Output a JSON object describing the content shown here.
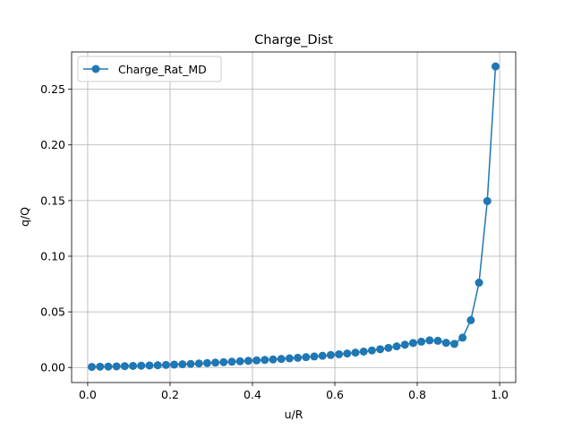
{
  "chart_data": {
    "type": "line",
    "title": "Charge_Dist",
    "xlabel": "u/R",
    "ylabel": "q/Q",
    "xlim": [
      -0.039,
      1.039
    ],
    "ylim": [
      -0.0135,
      0.2835
    ],
    "xticks": [
      0.0,
      0.2,
      0.4,
      0.6,
      0.8,
      1.0
    ],
    "xtick_labels": [
      "0.0",
      "0.2",
      "0.4",
      "0.6",
      "0.8",
      "1.0"
    ],
    "yticks": [
      0.0,
      0.05,
      0.1,
      0.15,
      0.2,
      0.25
    ],
    "ytick_labels": [
      "0.00",
      "0.05",
      "0.10",
      "0.15",
      "0.20",
      "0.25"
    ],
    "grid": true,
    "legend_position": "top-left",
    "series": [
      {
        "name": "Charge_Rat_MD",
        "color": "#1f77b4",
        "marker": "circle",
        "x": [
          0.01,
          0.03,
          0.05,
          0.07,
          0.09,
          0.11,
          0.13,
          0.15,
          0.17,
          0.19,
          0.21,
          0.23,
          0.25,
          0.27,
          0.29,
          0.31,
          0.33,
          0.35,
          0.37,
          0.39,
          0.41,
          0.43,
          0.45,
          0.47,
          0.49,
          0.51,
          0.53,
          0.55,
          0.57,
          0.59,
          0.61,
          0.63,
          0.65,
          0.67,
          0.69,
          0.71,
          0.73,
          0.75,
          0.77,
          0.79,
          0.81,
          0.83,
          0.85,
          0.87,
          0.89,
          0.91,
          0.93,
          0.95,
          0.97,
          0.99
        ],
        "y": [
          0.0005,
          0.0007,
          0.0008,
          0.001,
          0.0012,
          0.0014,
          0.0016,
          0.0018,
          0.002,
          0.0023,
          0.0026,
          0.0029,
          0.0032,
          0.0036,
          0.004,
          0.0044,
          0.0048,
          0.0052,
          0.0056,
          0.006,
          0.0064,
          0.0068,
          0.0072,
          0.0077,
          0.0082,
          0.0087,
          0.0093,
          0.0099,
          0.0105,
          0.0112,
          0.0119,
          0.0126,
          0.0134,
          0.0143,
          0.0153,
          0.0164,
          0.0176,
          0.019,
          0.0205,
          0.022,
          0.0232,
          0.0244,
          0.024,
          0.0222,
          0.0212,
          0.0268,
          0.0425,
          0.0762,
          0.1495,
          0.2705
        ]
      }
    ]
  }
}
